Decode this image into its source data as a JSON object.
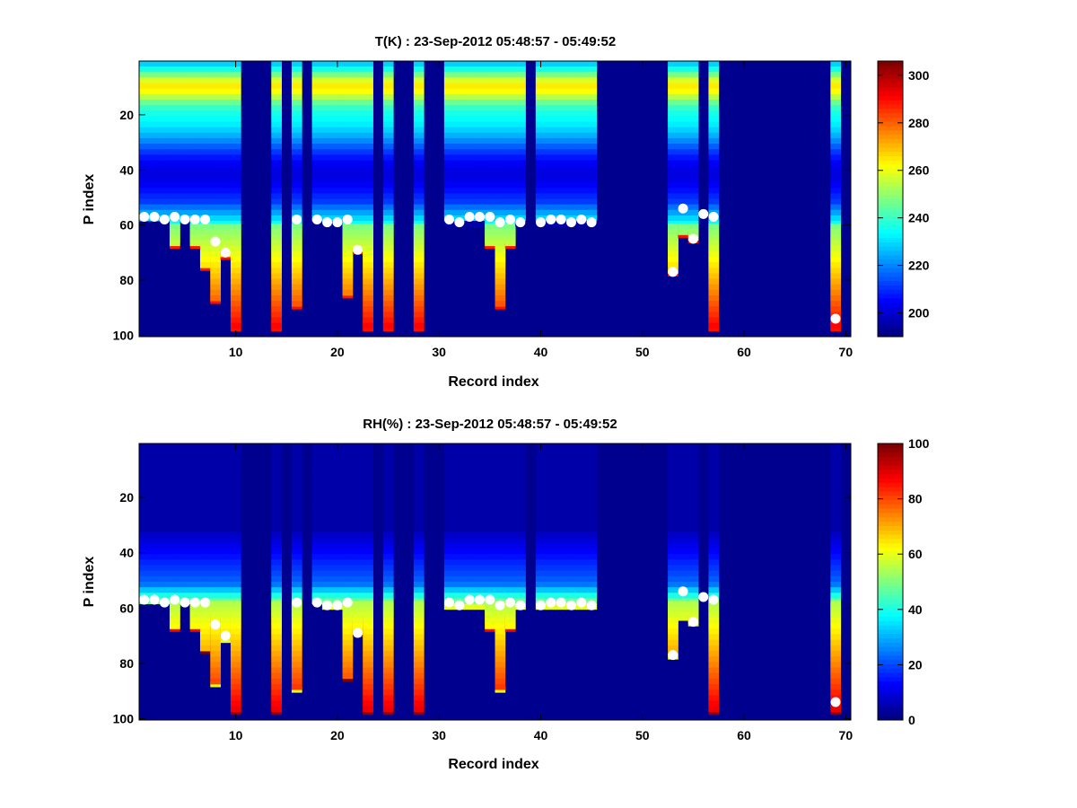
{
  "chart_data": [
    {
      "type": "heatmap",
      "title": "T(K) : 23-Sep-2012 05:48:57 - 05:49:52",
      "xlabel": "Record index",
      "ylabel": "P index",
      "xlim": [
        0.5,
        70.5
      ],
      "ylim": [
        100.5,
        0.5
      ],
      "xticks": [
        10,
        20,
        30,
        40,
        50,
        60,
        70
      ],
      "yticks": [
        20,
        40,
        60,
        80,
        100
      ],
      "colorbar": {
        "range": [
          190,
          306
        ],
        "ticks": [
          200,
          220,
          240,
          260,
          280,
          300
        ]
      },
      "colormap": "jet",
      "markers": [
        {
          "x": 1,
          "y": 57
        },
        {
          "x": 2,
          "y": 57
        },
        {
          "x": 3,
          "y": 58
        },
        {
          "x": 4,
          "y": 57
        },
        {
          "x": 5,
          "y": 58
        },
        {
          "x": 6,
          "y": 58
        },
        {
          "x": 7,
          "y": 58
        },
        {
          "x": 8,
          "y": 66
        },
        {
          "x": 9,
          "y": 70
        },
        {
          "x": 16,
          "y": 58
        },
        {
          "x": 18,
          "y": 58
        },
        {
          "x": 19,
          "y": 59
        },
        {
          "x": 20,
          "y": 59
        },
        {
          "x": 21,
          "y": 58
        },
        {
          "x": 22,
          "y": 69
        },
        {
          "x": 31,
          "y": 58
        },
        {
          "x": 32,
          "y": 59
        },
        {
          "x": 33,
          "y": 57
        },
        {
          "x": 34,
          "y": 57
        },
        {
          "x": 35,
          "y": 57
        },
        {
          "x": 36,
          "y": 59
        },
        {
          "x": 37,
          "y": 58
        },
        {
          "x": 38,
          "y": 59
        },
        {
          "x": 40,
          "y": 59
        },
        {
          "x": 41,
          "y": 58
        },
        {
          "x": 42,
          "y": 58
        },
        {
          "x": 43,
          "y": 59
        },
        {
          "x": 44,
          "y": 58
        },
        {
          "x": 45,
          "y": 59
        },
        {
          "x": 53,
          "y": 77
        },
        {
          "x": 54,
          "y": 54
        },
        {
          "x": 55,
          "y": 65
        },
        {
          "x": 56,
          "y": 56
        },
        {
          "x": 57,
          "y": 57
        },
        {
          "x": 69,
          "y": 94
        }
      ],
      "columns": [
        {
          "x": 1,
          "top": 58
        },
        {
          "x": 2,
          "top": 58
        },
        {
          "x": 3,
          "top": 58
        },
        {
          "x": 4,
          "top": 68
        },
        {
          "x": 5,
          "top": 58
        },
        {
          "x": 6,
          "top": 68
        },
        {
          "x": 7,
          "top": 76
        },
        {
          "x": 8,
          "top": 87
        },
        {
          "x": 9,
          "top": 71
        },
        {
          "x": 10,
          "top": 97
        },
        {
          "x": 14,
          "top": 97
        },
        {
          "x": 16,
          "top": 89
        },
        {
          "x": 18,
          "top": 58
        },
        {
          "x": 19,
          "top": 59
        },
        {
          "x": 20,
          "top": 59
        },
        {
          "x": 21,
          "top": 86
        },
        {
          "x": 22,
          "top": 70
        },
        {
          "x": 23,
          "top": 97
        },
        {
          "x": 25,
          "top": 97
        },
        {
          "x": 28,
          "top": 97
        },
        {
          "x": 31,
          "top": 59
        },
        {
          "x": 32,
          "top": 59
        },
        {
          "x": 33,
          "top": 59
        },
        {
          "x": 34,
          "top": 59
        },
        {
          "x": 35,
          "top": 68
        },
        {
          "x": 36,
          "top": 89
        },
        {
          "x": 37,
          "top": 68
        },
        {
          "x": 38,
          "top": 59
        },
        {
          "x": 40,
          "top": 59
        },
        {
          "x": 41,
          "top": 59
        },
        {
          "x": 42,
          "top": 59
        },
        {
          "x": 43,
          "top": 59
        },
        {
          "x": 44,
          "top": 59
        },
        {
          "x": 45,
          "top": 59
        },
        {
          "x": 53,
          "top": 77
        },
        {
          "x": 54,
          "top": 63
        },
        {
          "x": 55,
          "top": 65
        },
        {
          "x": 57,
          "top": 97
        },
        {
          "x": 69,
          "top": 97
        }
      ]
    },
    {
      "type": "heatmap",
      "title": "RH(%) : 23-Sep-2012 05:48:57 - 05:49:52",
      "xlabel": "Record index",
      "ylabel": "P index",
      "xlim": [
        0.5,
        70.5
      ],
      "ylim": [
        100.5,
        0.5
      ],
      "xticks": [
        10,
        20,
        30,
        40,
        50,
        60,
        70
      ],
      "yticks": [
        20,
        40,
        60,
        80,
        100
      ],
      "colorbar": {
        "range": [
          0,
          100
        ],
        "ticks": [
          0,
          20,
          40,
          60,
          80,
          100
        ]
      },
      "colormap": "jet",
      "markers": [
        {
          "x": 1,
          "y": 57
        },
        {
          "x": 2,
          "y": 57
        },
        {
          "x": 3,
          "y": 58
        },
        {
          "x": 4,
          "y": 57
        },
        {
          "x": 5,
          "y": 58
        },
        {
          "x": 6,
          "y": 58
        },
        {
          "x": 7,
          "y": 58
        },
        {
          "x": 8,
          "y": 66
        },
        {
          "x": 9,
          "y": 70
        },
        {
          "x": 16,
          "y": 58
        },
        {
          "x": 18,
          "y": 58
        },
        {
          "x": 19,
          "y": 59
        },
        {
          "x": 20,
          "y": 59
        },
        {
          "x": 21,
          "y": 58
        },
        {
          "x": 22,
          "y": 69
        },
        {
          "x": 31,
          "y": 58
        },
        {
          "x": 32,
          "y": 59
        },
        {
          "x": 33,
          "y": 57
        },
        {
          "x": 34,
          "y": 57
        },
        {
          "x": 35,
          "y": 57
        },
        {
          "x": 36,
          "y": 59
        },
        {
          "x": 37,
          "y": 58
        },
        {
          "x": 38,
          "y": 59
        },
        {
          "x": 40,
          "y": 59
        },
        {
          "x": 41,
          "y": 58
        },
        {
          "x": 42,
          "y": 58
        },
        {
          "x": 43,
          "y": 59
        },
        {
          "x": 44,
          "y": 58
        },
        {
          "x": 45,
          "y": 59
        },
        {
          "x": 53,
          "y": 77
        },
        {
          "x": 54,
          "y": 54
        },
        {
          "x": 55,
          "y": 65
        },
        {
          "x": 56,
          "y": 56
        },
        {
          "x": 57,
          "y": 57
        },
        {
          "x": 69,
          "y": 94
        }
      ]
    }
  ]
}
